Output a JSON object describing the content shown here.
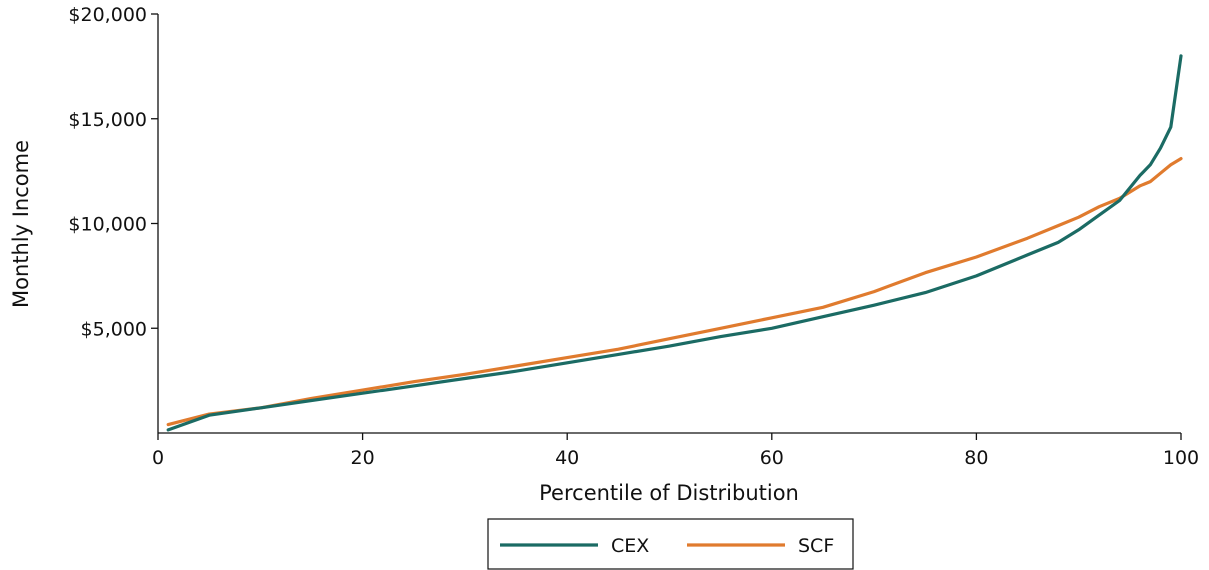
{
  "chart_data": {
    "type": "line",
    "title": "",
    "xlabel": "Percentile of Distribution",
    "ylabel": "Monthly Income",
    "xlim": [
      0,
      100
    ],
    "ylim": [
      0,
      20000
    ],
    "x_ticks": [
      0,
      20,
      40,
      60,
      80,
      100
    ],
    "x_tick_labels": [
      "0",
      "20",
      "40",
      "60",
      "80",
      "100"
    ],
    "y_ticks": [
      5000,
      10000,
      15000,
      20000
    ],
    "y_tick_labels": [
      "$5,000",
      "$10,000",
      "$15,000",
      "$20,000"
    ],
    "grid": false,
    "legend_position": "bottom",
    "x": [
      1,
      5,
      10,
      15,
      20,
      25,
      30,
      35,
      40,
      45,
      50,
      55,
      60,
      65,
      70,
      75,
      80,
      85,
      88,
      90,
      92,
      94,
      96,
      97,
      98,
      99,
      100
    ],
    "series": [
      {
        "name": "CEX",
        "color": "#1b6b64",
        "values": [
          150,
          850,
          1200,
          1550,
          1900,
          2250,
          2600,
          2950,
          3350,
          3750,
          4150,
          4600,
          5000,
          5550,
          6100,
          6700,
          7500,
          8500,
          9100,
          9700,
          10400,
          11100,
          12300,
          12800,
          13600,
          14600,
          18000
        ]
      },
      {
        "name": "SCF",
        "color": "#e07b2e",
        "values": [
          400,
          900,
          1200,
          1650,
          2050,
          2450,
          2800,
          3200,
          3600,
          4000,
          4500,
          5000,
          5500,
          6000,
          6750,
          7650,
          8400,
          9300,
          9900,
          10300,
          10800,
          11200,
          11800,
          12000,
          12400,
          12800,
          13100
        ]
      }
    ]
  }
}
